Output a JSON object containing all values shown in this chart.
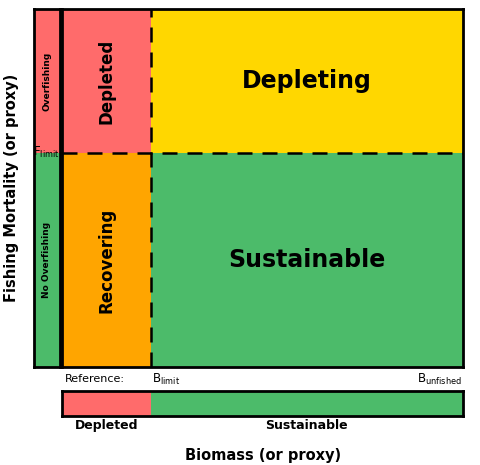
{
  "xlabel": "Biomass (or proxy)",
  "ylabel": "Fishing Mortality (or proxy)",
  "colors": {
    "red": "#FF6B6B",
    "yellow": "#FFD700",
    "orange": "#FFA500",
    "green": "#4CBB6A",
    "white": "#FFFFFF",
    "black": "#000000"
  },
  "f_limit_ratio": 0.4,
  "b_limit_ratio": 0.22,
  "zone_labels": {
    "depleted_main": "Depleted",
    "depleting": "Depleting",
    "recovering": "Recovering",
    "sustainable": "Sustainable"
  },
  "overfishing_label": "Overfishing",
  "no_overfishing_label": "No Overfishing",
  "reference_text": "Reference:",
  "legend_depleted_label": "Depleted",
  "legend_sustainable_label": "Sustainable",
  "legend_bar_depleted_ratio": 0.22
}
